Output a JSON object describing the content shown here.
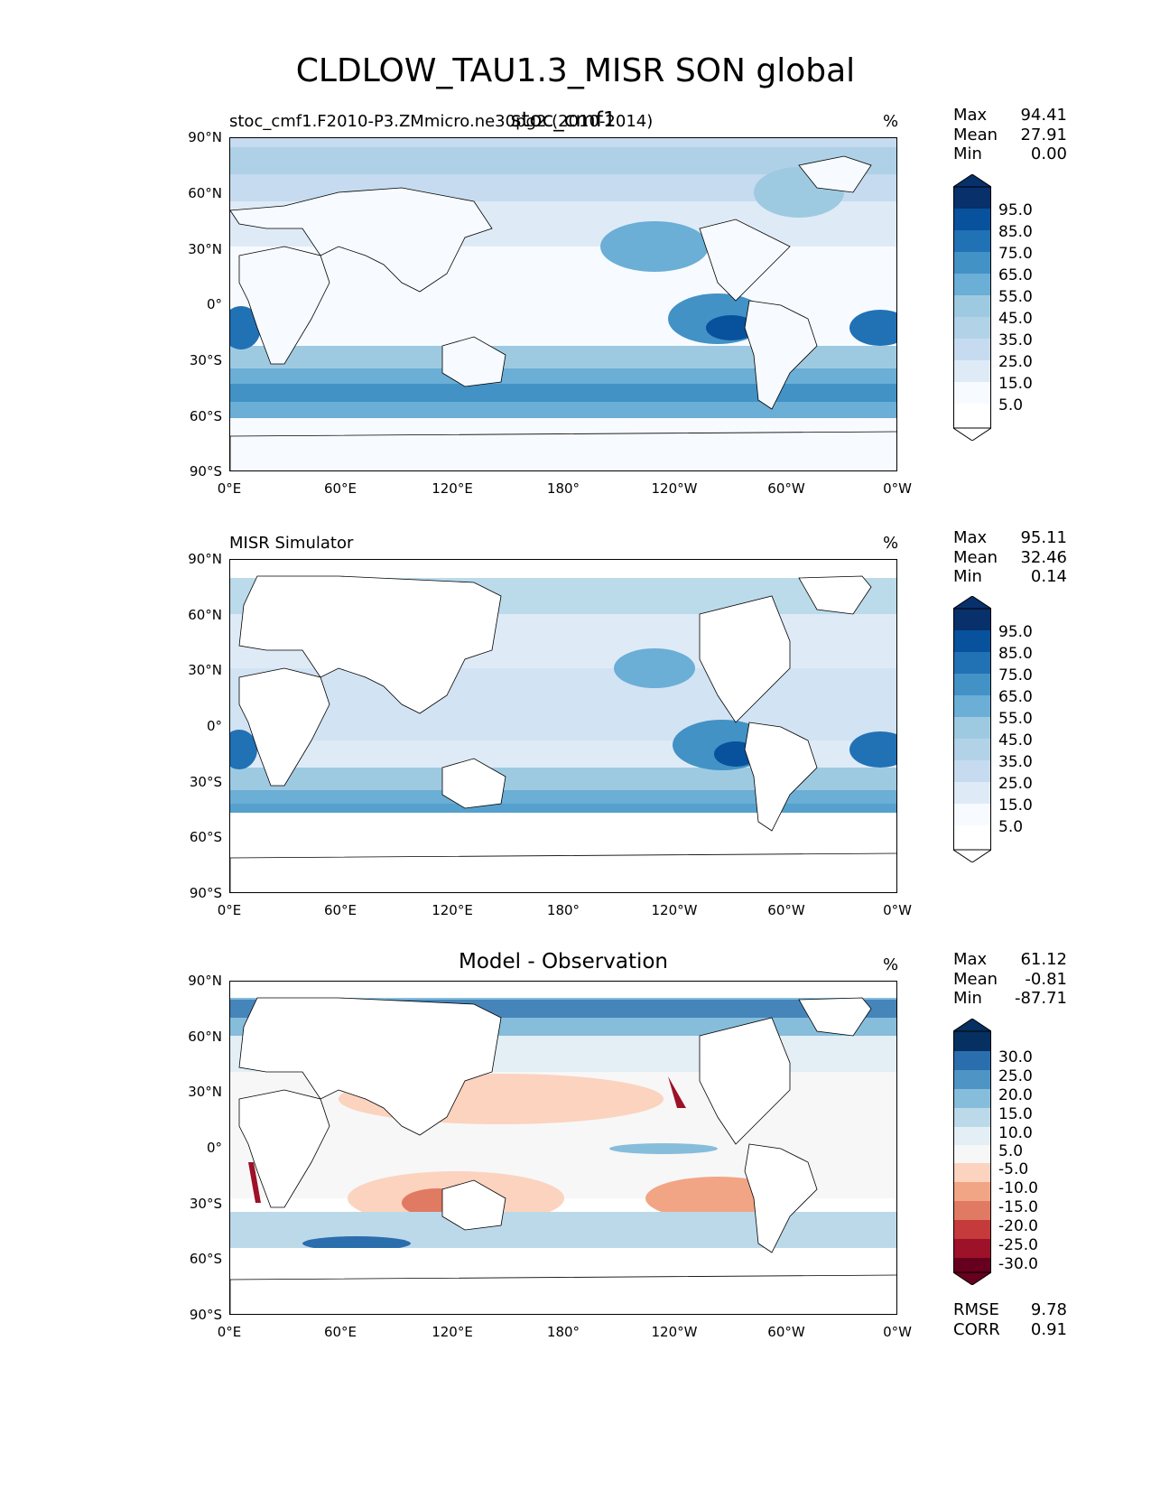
{
  "figure_title": "CLDLOW_TAU1.3_MISR SON global",
  "units": "%",
  "panels": [
    {
      "left_title": "stoc_cmf1.F2010-P3.ZMmicro.ne30pg2 (2010-2014)",
      "center_title": "stoc_cmf1",
      "stats": [
        {
          "label": "Max",
          "value": "94.41"
        },
        {
          "label": "Mean",
          "value": "27.91"
        },
        {
          "label": "Min",
          "value": "0.00"
        }
      ],
      "colorbar_labels": [
        "95.0",
        "85.0",
        "75.0",
        "65.0",
        "55.0",
        "45.0",
        "35.0",
        "25.0",
        "15.0",
        "5.0"
      ]
    },
    {
      "left_title": "MISR Simulator",
      "center_title": "",
      "stats": [
        {
          "label": "Max",
          "value": "95.11"
        },
        {
          "label": "Mean",
          "value": "32.46"
        },
        {
          "label": "Min",
          "value": "0.14"
        }
      ],
      "colorbar_labels": [
        "95.0",
        "85.0",
        "75.0",
        "65.0",
        "55.0",
        "45.0",
        "35.0",
        "25.0",
        "15.0",
        "5.0"
      ]
    },
    {
      "left_title": "",
      "center_title": "Model - Observation",
      "stats": [
        {
          "label": "Max",
          "value": "61.12"
        },
        {
          "label": "Mean",
          "value": "-0.81"
        },
        {
          "label": "Min",
          "value": "-87.71"
        }
      ],
      "colorbar_labels": [
        "30.0",
        "25.0",
        "20.0",
        "15.0",
        "10.0",
        "5.0",
        "-5.0",
        "-10.0",
        "-15.0",
        "-20.0",
        "-25.0",
        "-30.0"
      ],
      "metrics": [
        {
          "label": "RMSE",
          "value": "9.78"
        },
        {
          "label": "CORR",
          "value": "0.91"
        }
      ]
    }
  ],
  "lat_ticks": [
    "90°N",
    "60°N",
    "30°N",
    "0°",
    "30°S",
    "60°S",
    "90°S"
  ],
  "lon_ticks": [
    "0°E",
    "60°E",
    "120°E",
    "180°",
    "120°W",
    "60°W",
    "0°W"
  ],
  "colors": {
    "blues": [
      "#f7fbff",
      "#deebf7",
      "#c6dbef",
      "#b2d2e8",
      "#9ecae1",
      "#6baed6",
      "#4292c6",
      "#2171b5",
      "#1c5fa8",
      "#08519c",
      "#08306b"
    ],
    "diverging": [
      "#67001f",
      "#9d1129",
      "#c53a3a",
      "#e07a62",
      "#f2a584",
      "#fbd3bf",
      "#f7f7f7",
      "#e3eef5",
      "#bcd9ea",
      "#86bddb",
      "#4e95c6",
      "#2b6ead",
      "#053061"
    ]
  }
}
